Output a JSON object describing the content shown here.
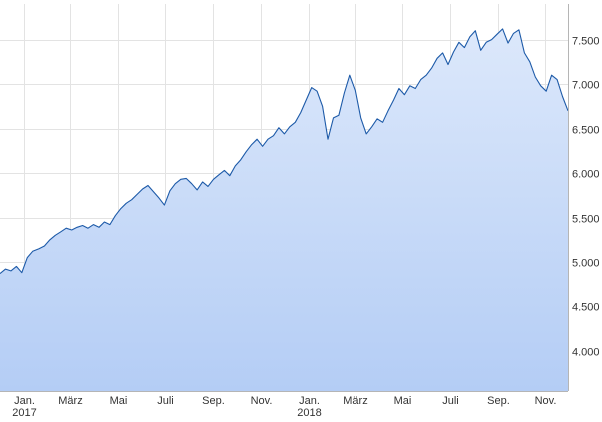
{
  "chart_data": {
    "type": "area",
    "title": "",
    "xlabel": "",
    "ylabel": "",
    "ylim": [
      3550,
      7900
    ],
    "xlim": [
      "2016-12-01",
      "2018-11-30"
    ],
    "grid": true,
    "legend": "none",
    "colors": {
      "line": "#1d5aa8",
      "fill_top": "#dce8fb",
      "fill_bottom": "#b4cdf5",
      "grid": "#e3e3e3"
    },
    "y_ticks": [
      {
        "value": 4000,
        "label": "4.000"
      },
      {
        "value": 4500,
        "label": "4.500"
      },
      {
        "value": 5000,
        "label": "5.000"
      },
      {
        "value": 5500,
        "label": "5.500"
      },
      {
        "value": 6000,
        "label": "6.000"
      },
      {
        "value": 6500,
        "label": "6.500"
      },
      {
        "value": 7000,
        "label": "7.000"
      },
      {
        "value": 7500,
        "label": "7.500"
      }
    ],
    "x_ticks": [
      {
        "date": "2017-01-01",
        "label": "Jan.",
        "sublabel": "2017"
      },
      {
        "date": "2017-03-01",
        "label": "März"
      },
      {
        "date": "2017-05-01",
        "label": "Mai"
      },
      {
        "date": "2017-07-01",
        "label": "Juli"
      },
      {
        "date": "2017-09-01",
        "label": "Sep."
      },
      {
        "date": "2017-11-01",
        "label": "Nov."
      },
      {
        "date": "2018-01-01",
        "label": "Jan.",
        "sublabel": "2018"
      },
      {
        "date": "2018-03-01",
        "label": "März"
      },
      {
        "date": "2018-05-01",
        "label": "Mai"
      },
      {
        "date": "2018-07-01",
        "label": "Juli"
      },
      {
        "date": "2018-09-01",
        "label": "Sep."
      },
      {
        "date": "2018-11-01",
        "label": "Nov."
      }
    ],
    "series": [
      {
        "x": [
          "2016-12-01",
          "2016-12-08",
          "2016-12-15",
          "2016-12-22",
          "2016-12-29",
          "2017-01-05",
          "2017-01-12",
          "2017-01-20",
          "2017-01-27",
          "2017-02-03",
          "2017-02-10",
          "2017-02-17",
          "2017-02-24",
          "2017-03-03",
          "2017-03-10",
          "2017-03-17",
          "2017-03-24",
          "2017-03-31",
          "2017-04-07",
          "2017-04-14",
          "2017-04-21",
          "2017-04-28",
          "2017-05-05",
          "2017-05-12",
          "2017-05-19",
          "2017-05-26",
          "2017-06-02",
          "2017-06-09",
          "2017-06-16",
          "2017-06-23",
          "2017-06-30",
          "2017-07-07",
          "2017-07-14",
          "2017-07-21",
          "2017-07-28",
          "2017-08-04",
          "2017-08-11",
          "2017-08-18",
          "2017-08-25",
          "2017-09-01",
          "2017-09-08",
          "2017-09-15",
          "2017-09-22",
          "2017-09-29",
          "2017-10-06",
          "2017-10-13",
          "2017-10-20",
          "2017-10-27",
          "2017-11-03",
          "2017-11-10",
          "2017-11-17",
          "2017-11-24",
          "2017-12-01",
          "2017-12-08",
          "2017-12-15",
          "2017-12-22",
          "2017-12-29",
          "2018-01-05",
          "2018-01-12",
          "2018-01-19",
          "2018-01-26",
          "2018-02-02",
          "2018-02-09",
          "2018-02-16",
          "2018-02-23",
          "2018-03-02",
          "2018-03-09",
          "2018-03-16",
          "2018-03-23",
          "2018-03-30",
          "2018-04-06",
          "2018-04-13",
          "2018-04-20",
          "2018-04-27",
          "2018-05-04",
          "2018-05-11",
          "2018-05-18",
          "2018-05-25",
          "2018-06-01",
          "2018-06-08",
          "2018-06-15",
          "2018-06-22",
          "2018-06-29",
          "2018-07-06",
          "2018-07-13",
          "2018-07-20",
          "2018-07-27",
          "2018-08-03",
          "2018-08-10",
          "2018-08-17",
          "2018-08-24",
          "2018-08-31",
          "2018-09-07",
          "2018-09-14",
          "2018-09-21",
          "2018-09-28",
          "2018-10-05",
          "2018-10-12",
          "2018-10-19",
          "2018-10-26",
          "2018-11-02",
          "2018-11-09",
          "2018-11-16",
          "2018-11-23",
          "2018-11-30"
        ],
        "values": [
          4870,
          4920,
          4900,
          4950,
          4880,
          5050,
          5120,
          5150,
          5180,
          5250,
          5300,
          5340,
          5380,
          5360,
          5390,
          5410,
          5380,
          5420,
          5390,
          5450,
          5420,
          5520,
          5600,
          5660,
          5700,
          5760,
          5820,
          5860,
          5790,
          5720,
          5640,
          5800,
          5880,
          5930,
          5940,
          5880,
          5810,
          5900,
          5850,
          5930,
          5980,
          6030,
          5970,
          6080,
          6150,
          6240,
          6320,
          6380,
          6300,
          6380,
          6420,
          6510,
          6440,
          6520,
          6570,
          6680,
          6820,
          6960,
          6920,
          6750,
          6380,
          6620,
          6650,
          6900,
          7100,
          6930,
          6620,
          6440,
          6520,
          6610,
          6570,
          6700,
          6820,
          6950,
          6880,
          6980,
          6950,
          7050,
          7100,
          7180,
          7290,
          7350,
          7220,
          7360,
          7470,
          7410,
          7530,
          7600,
          7380,
          7470,
          7500,
          7560,
          7620,
          7460,
          7570,
          7610,
          7350,
          7250,
          7080,
          6980,
          6920,
          7100,
          7050,
          6860,
          6700
        ]
      }
    ]
  }
}
